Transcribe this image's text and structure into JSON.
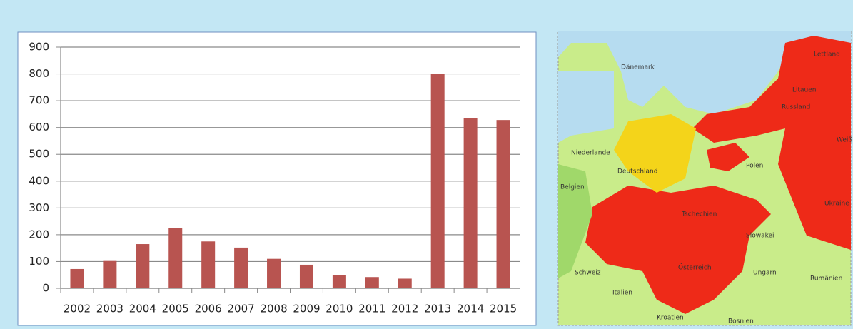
{
  "chart_data": {
    "type": "bar",
    "categories": [
      "2002",
      "2003",
      "2004",
      "2005",
      "2006",
      "2007",
      "2008",
      "2009",
      "2010",
      "2011",
      "2012",
      "2013",
      "2014",
      "2015"
    ],
    "values": [
      72,
      102,
      165,
      225,
      175,
      152,
      110,
      88,
      48,
      42,
      36,
      800,
      635,
      628
    ],
    "color": "#b85450",
    "ylim": [
      0,
      900
    ],
    "yticks": [
      0,
      100,
      200,
      300,
      400,
      500,
      600,
      700,
      800,
      900
    ],
    "grid": true
  },
  "map": {
    "labels": [
      "Dänemark",
      "Lettland",
      "Litauen",
      "Russland",
      "Polen",
      "Deutschland",
      "Niederlande",
      "Belgien",
      "Tschechien",
      "Slowakei",
      "Österreich",
      "Ungarn",
      "Rumänien",
      "Ukraine",
      "Schweiz",
      "Italien",
      "Kroatien",
      "Bosnien",
      "Weiß"
    ]
  }
}
